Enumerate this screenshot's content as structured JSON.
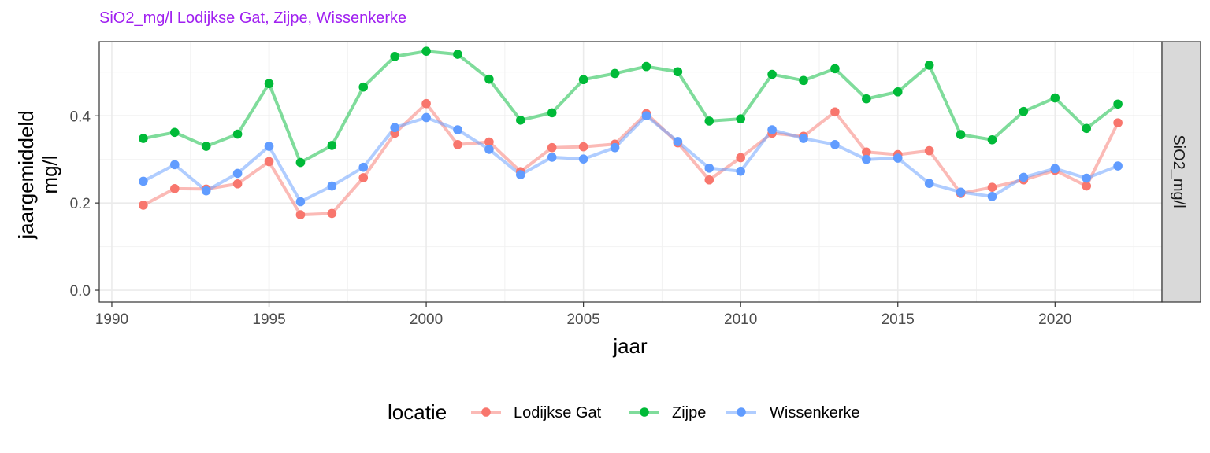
{
  "chart_data": {
    "type": "line",
    "title": "SiO2_mg/l Lodijkse Gat, Zijpe, Wissenkerke",
    "xlabel": "jaar",
    "ylabel_lines": [
      "jaargemiddeld",
      "mg/l"
    ],
    "facet_label": "SiO2_mg/l",
    "legend_title": "locatie",
    "legend_position": "bottom",
    "grid": true,
    "xlim": [
      1989.6,
      2023.4
    ],
    "ylim": [
      -0.027,
      0.57
    ],
    "x_ticks": [
      1990,
      1995,
      2000,
      2005,
      2010,
      2015,
      2020
    ],
    "x_tick_labels": [
      "1990",
      "1995",
      "2000",
      "2005",
      "2010",
      "2015",
      "2020"
    ],
    "y_ticks": [
      0.0,
      0.2,
      0.4
    ],
    "y_tick_labels": [
      "0.0",
      "0.2",
      "0.4"
    ],
    "x": [
      1991,
      1992,
      1993,
      1994,
      1995,
      1996,
      1997,
      1998,
      1999,
      2000,
      2001,
      2002,
      2003,
      2004,
      2005,
      2006,
      2007,
      2008,
      2009,
      2010,
      2011,
      2012,
      2013,
      2014,
      2015,
      2016,
      2017,
      2018,
      2019,
      2020,
      2021,
      2022
    ],
    "series": [
      {
        "name": "Lodijkse Gat",
        "color": "#f8766d",
        "values": [
          0.195,
          0.233,
          0.232,
          0.244,
          0.295,
          0.173,
          0.176,
          0.258,
          0.36,
          0.428,
          0.334,
          0.34,
          0.272,
          0.327,
          0.329,
          0.335,
          0.405,
          0.338,
          0.253,
          0.304,
          0.36,
          0.353,
          0.409,
          0.317,
          0.311,
          0.32,
          0.222,
          0.236,
          0.253,
          0.275,
          0.239,
          0.384
        ]
      },
      {
        "name": "Zijpe",
        "color": "#00ba38",
        "values": [
          0.348,
          0.362,
          0.33,
          0.358,
          0.474,
          0.293,
          0.332,
          0.466,
          0.536,
          0.548,
          0.541,
          0.484,
          0.39,
          0.407,
          0.483,
          0.497,
          0.513,
          0.501,
          0.388,
          0.393,
          0.495,
          0.481,
          0.508,
          0.439,
          0.455,
          0.516,
          0.357,
          0.345,
          0.41,
          0.441,
          0.371,
          0.427
        ]
      },
      {
        "name": "Wissenkerke",
        "color": "#619cff",
        "values": [
          0.25,
          0.288,
          0.228,
          0.268,
          0.33,
          0.203,
          0.239,
          0.282,
          0.373,
          0.396,
          0.368,
          0.323,
          0.265,
          0.305,
          0.301,
          0.327,
          0.4,
          0.341,
          0.28,
          0.273,
          0.368,
          0.348,
          0.334,
          0.3,
          0.303,
          0.245,
          0.225,
          0.215,
          0.259,
          0.279,
          0.257,
          0.285
        ]
      }
    ]
  }
}
